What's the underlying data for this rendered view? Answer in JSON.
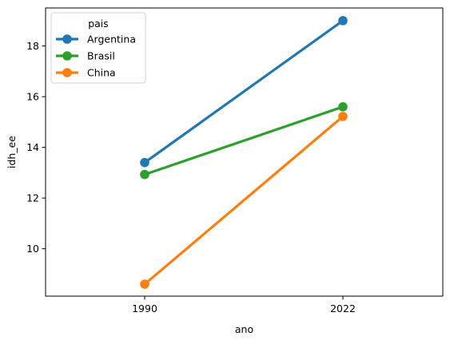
{
  "chart_data": {
    "type": "line",
    "categories": [
      "1990",
      "2022"
    ],
    "xlabel": "ano",
    "ylabel": "idh_ee",
    "ylim": [
      8.13,
      19.5
    ],
    "yticks": [
      10,
      12,
      14,
      16,
      18
    ],
    "grid": false,
    "legend": {
      "title": "pais",
      "placement": "top-left"
    },
    "series": [
      {
        "name": "Argentina",
        "values": [
          13.4,
          19.0
        ],
        "color": "#1f77b4"
      },
      {
        "name": "Brasil",
        "values": [
          12.93,
          15.6
        ],
        "color": "#2ca02c"
      },
      {
        "name": "China",
        "values": [
          8.6,
          15.22
        ],
        "color": "#ff7f0e"
      }
    ]
  }
}
